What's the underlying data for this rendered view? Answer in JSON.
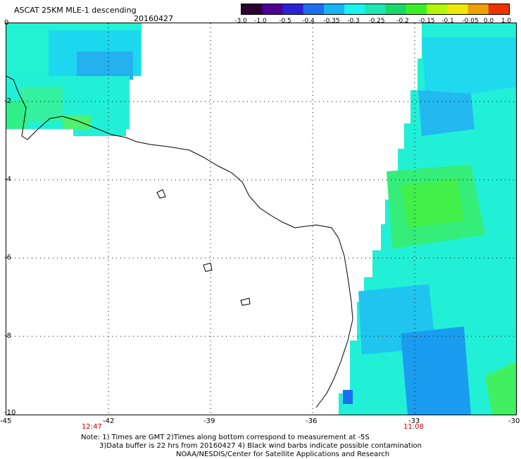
{
  "header": {
    "title": "ASCAT 25KM MLE-1 descending",
    "date": "20160427"
  },
  "colorbar": {
    "labels": [
      "-3.0",
      "-1.0",
      "-0.5",
      "-0.4",
      "-0.35",
      "-0.3",
      "-0.25",
      "-0.2",
      "-0.15",
      "-0.1",
      "-0.05",
      "0.0",
      "1.0"
    ],
    "colors": [
      "#2b0030",
      "#4b0090",
      "#2a23d6",
      "#1d6ef0",
      "#17b4f3",
      "#1bf3f0",
      "#1ce6b4",
      "#18d86a",
      "#3cf028",
      "#b4f50a",
      "#f0e80a",
      "#f0a000",
      "#f03200"
    ]
  },
  "axes": {
    "x_ticks": [
      "-45",
      "-42",
      "-39",
      "-36",
      "-33",
      "-30"
    ],
    "y_ticks": [
      "0",
      "-2",
      "-4",
      "-6",
      "-8",
      "-10"
    ]
  },
  "times": {
    "left": "12:47",
    "right": "11:08"
  },
  "note": {
    "line1": "Note: 1) Times are GMT 2)Times along bottom correspond to measurement at -5S",
    "line2": "3)Data buffer is 22 hrs from 20160427 4) Black wind barbs indicate possible contamination",
    "line3": "NOAA/NESDIS/Center for Satellite Applications and Research"
  }
}
